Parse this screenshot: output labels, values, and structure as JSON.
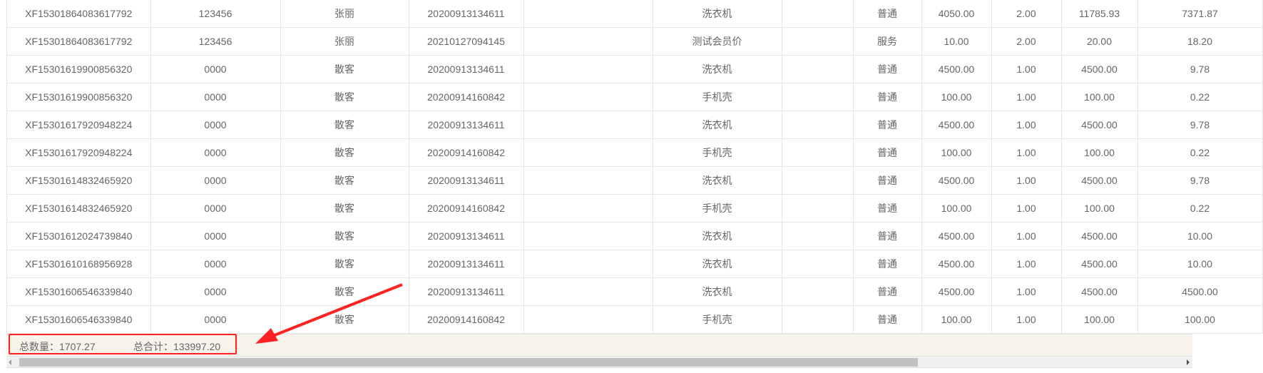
{
  "table": {
    "rows": [
      [
        "XF15301864083617792",
        "123456",
        "张丽",
        "20200913134611",
        "",
        "洗衣机",
        "",
        "普通",
        "4050.00",
        "2.00",
        "11785.93",
        "7371.87"
      ],
      [
        "XF15301864083617792",
        "123456",
        "张丽",
        "20210127094145",
        "",
        "测试会员价",
        "",
        "服务",
        "10.00",
        "2.00",
        "20.00",
        "18.20"
      ],
      [
        "XF15301619900856320",
        "0000",
        "散客",
        "20200913134611",
        "",
        "洗衣机",
        "",
        "普通",
        "4500.00",
        "1.00",
        "4500.00",
        "9.78"
      ],
      [
        "XF15301619900856320",
        "0000",
        "散客",
        "20200914160842",
        "",
        "手机壳",
        "",
        "普通",
        "100.00",
        "1.00",
        "100.00",
        "0.22"
      ],
      [
        "XF15301617920948224",
        "0000",
        "散客",
        "20200913134611",
        "",
        "洗衣机",
        "",
        "普通",
        "4500.00",
        "1.00",
        "4500.00",
        "9.78"
      ],
      [
        "XF15301617920948224",
        "0000",
        "散客",
        "20200914160842",
        "",
        "手机壳",
        "",
        "普通",
        "100.00",
        "1.00",
        "100.00",
        "0.22"
      ],
      [
        "XF15301614832465920",
        "0000",
        "散客",
        "20200913134611",
        "",
        "洗衣机",
        "",
        "普通",
        "4500.00",
        "1.00",
        "4500.00",
        "9.78"
      ],
      [
        "XF15301614832465920",
        "0000",
        "散客",
        "20200914160842",
        "",
        "手机壳",
        "",
        "普通",
        "100.00",
        "1.00",
        "100.00",
        "0.22"
      ],
      [
        "XF15301612024739840",
        "0000",
        "散客",
        "20200913134611",
        "",
        "洗衣机",
        "",
        "普通",
        "4500.00",
        "1.00",
        "4500.00",
        "10.00"
      ],
      [
        "XF15301610168956928",
        "0000",
        "散客",
        "20200913134611",
        "",
        "洗衣机",
        "",
        "普通",
        "4500.00",
        "1.00",
        "4500.00",
        "10.00"
      ],
      [
        "XF15301606546339840",
        "0000",
        "散客",
        "20200913134611",
        "",
        "洗衣机",
        "",
        "普通",
        "4500.00",
        "1.00",
        "4500.00",
        "4500.00"
      ],
      [
        "XF15301606546339840",
        "0000",
        "散客",
        "20200914160842",
        "",
        "手机壳",
        "",
        "普通",
        "100.00",
        "1.00",
        "100.00",
        "100.00"
      ]
    ]
  },
  "footer": {
    "total_qty_label": "总数量：",
    "total_qty": "1707.27",
    "total_sum_label": "总合计：",
    "total_sum": "133997.20"
  },
  "colors": {
    "annotation": "#ff2222",
    "footer_bg": "#f7f3ea"
  }
}
